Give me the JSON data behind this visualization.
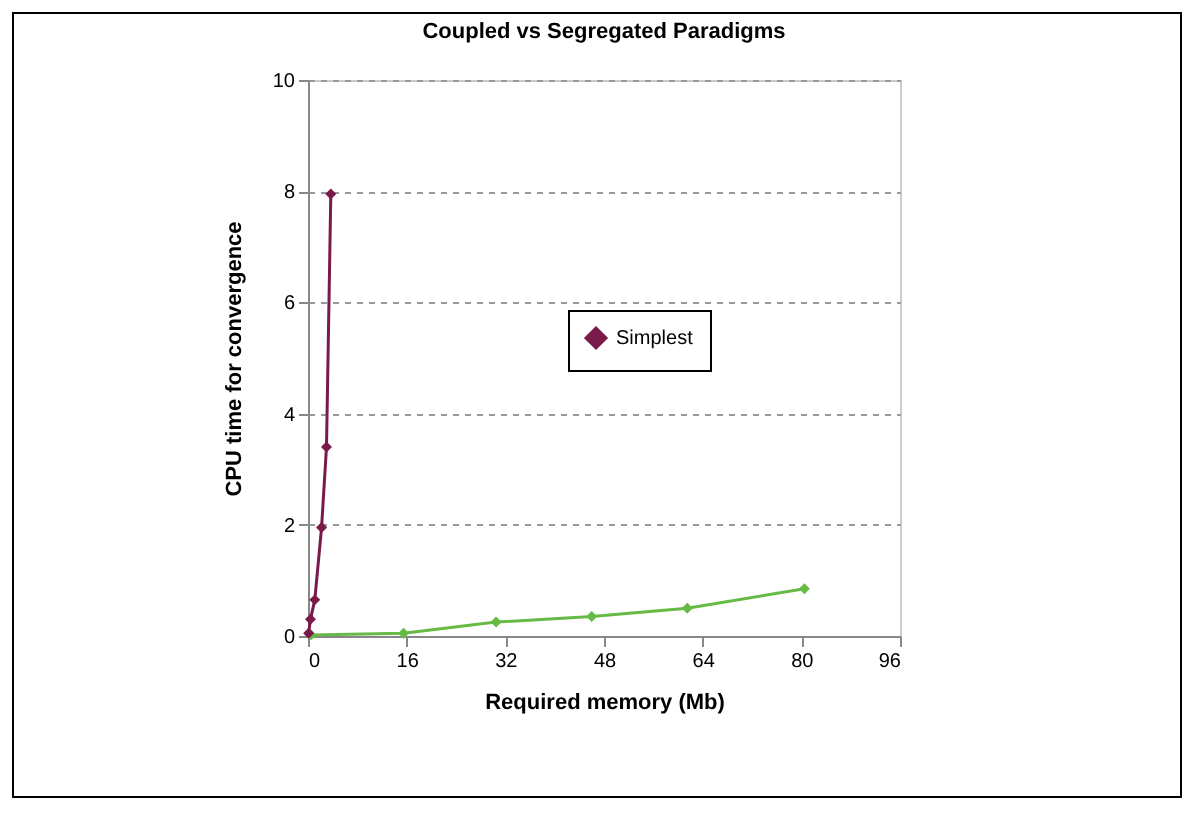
{
  "chart_data": {
    "type": "line",
    "title": "Coupled vs Segregated Paradigms",
    "xlabel": "Required memory (Mb)",
    "ylabel": "CPU time for convergence",
    "xlim": [
      0,
      96
    ],
    "xticks": [
      0,
      16,
      32,
      48,
      64,
      80,
      96
    ],
    "ylim": [
      0,
      10
    ],
    "yticks": [
      0,
      2,
      4,
      6,
      8,
      10
    ],
    "grid": "y",
    "legend": "right",
    "marker": "diamond",
    "line_style": "solid",
    "series": [
      {
        "color": "#66bb44",
        "x": [
          0.5,
          15.5,
          30.5,
          46,
          61.5,
          80.5
        ],
        "values": [
          0.02,
          0.05,
          0.25,
          0.35,
          0.5,
          0.85
        ]
      },
      {
        "name": "Simplest",
        "color": "#7a1a4a",
        "x": [
          0.1,
          0.4,
          1.1,
          2.2,
          3.0,
          3.7
        ],
        "values": [
          0.05,
          0.3,
          0.65,
          1.95,
          3.4,
          7.95
        ]
      }
    ]
  }
}
